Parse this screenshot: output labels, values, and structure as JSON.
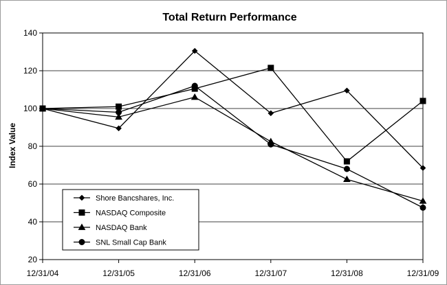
{
  "chart_data": {
    "type": "line",
    "title": "Total Return Performance",
    "xlabel": "",
    "ylabel": "Index Value",
    "categories": [
      "12/31/04",
      "12/31/05",
      "12/31/06",
      "12/31/07",
      "12/31/08",
      "12/31/09"
    ],
    "ylim": [
      20,
      140
    ],
    "yticks": [
      20,
      40,
      60,
      80,
      100,
      120,
      140
    ],
    "grid": true,
    "legend_position": "bottom-left",
    "series": [
      {
        "name": "Shore Bancshares, Inc.",
        "marker": "diamond",
        "values": [
          100,
          89.5,
          130.5,
          97.5,
          109.5,
          68.5
        ]
      },
      {
        "name": "NASDAQ Composite",
        "marker": "square",
        "values": [
          100,
          101,
          110.5,
          121.5,
          72,
          104
        ]
      },
      {
        "name": "NASDAQ Bank",
        "marker": "triangle",
        "values": [
          100,
          95.5,
          106,
          82.5,
          62.5,
          51
        ]
      },
      {
        "name": "SNL Small Cap Bank",
        "marker": "circle",
        "values": [
          100,
          98,
          112,
          81,
          68,
          47.5
        ]
      }
    ],
    "line_color": "#000000"
  }
}
